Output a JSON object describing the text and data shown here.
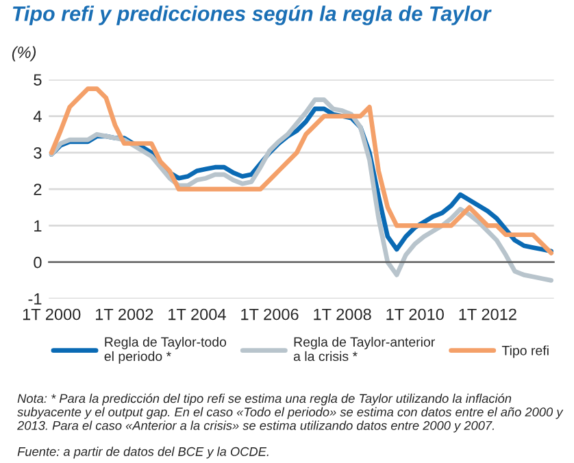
{
  "chart_data": {
    "type": "line",
    "title": "Tipo refi y predicciones según la regla de Taylor",
    "ylabel": "(%)",
    "categories": [
      "1T 2000",
      null,
      null,
      null,
      null,
      null,
      null,
      null,
      "1T 2002",
      null,
      null,
      null,
      null,
      null,
      null,
      null,
      "1T 2004",
      null,
      null,
      null,
      null,
      null,
      null,
      null,
      "1T 2006",
      null,
      null,
      null,
      null,
      null,
      null,
      null,
      "1T 2008",
      null,
      null,
      null,
      null,
      null,
      null,
      null,
      "1T 2010",
      null,
      null,
      null,
      null,
      null,
      null,
      null,
      "1T 2012",
      null,
      null,
      null,
      null,
      null,
      null,
      null
    ],
    "series": [
      {
        "name": "Regla de Taylor-todo\nel periodo *",
        "color": "#0a6ab4",
        "values": [
          2.95,
          3.2,
          3.3,
          3.3,
          3.3,
          3.45,
          3.45,
          3.4,
          3.4,
          3.25,
          3.15,
          3.0,
          2.7,
          2.45,
          2.3,
          2.35,
          2.5,
          2.55,
          2.6,
          2.6,
          2.45,
          2.35,
          2.4,
          2.7,
          3.0,
          3.25,
          3.45,
          3.6,
          3.85,
          4.2,
          4.2,
          4.05,
          4.0,
          3.95,
          3.7,
          3.0,
          1.8,
          0.7,
          0.35,
          0.7,
          0.95,
          1.1,
          1.25,
          1.35,
          1.55,
          1.85,
          1.7,
          1.55,
          1.4,
          1.2,
          0.9,
          0.6,
          0.45,
          0.4,
          0.35,
          0.3
        ]
      },
      {
        "name": "Regla de Taylor-anterior\na la crisis *",
        "color": "#b8c4cc",
        "values": [
          2.95,
          3.25,
          3.35,
          3.35,
          3.35,
          3.5,
          3.45,
          3.4,
          3.35,
          3.2,
          3.05,
          2.9,
          2.6,
          2.3,
          2.1,
          2.1,
          2.25,
          2.3,
          2.4,
          2.4,
          2.25,
          2.15,
          2.2,
          2.6,
          3.05,
          3.3,
          3.5,
          3.8,
          4.1,
          4.45,
          4.45,
          4.2,
          4.15,
          4.05,
          3.7,
          2.8,
          1.2,
          0.0,
          -0.35,
          0.2,
          0.5,
          0.7,
          0.85,
          1.0,
          1.2,
          1.45,
          1.3,
          1.1,
          0.85,
          0.6,
          0.2,
          -0.25,
          -0.35,
          -0.4,
          -0.45,
          -0.5
        ]
      },
      {
        "name": "Tipo refi",
        "color": "#f4a069",
        "values": [
          3.0,
          3.6,
          4.25,
          4.5,
          4.75,
          4.75,
          4.5,
          3.75,
          3.25,
          3.25,
          3.25,
          3.25,
          2.75,
          2.5,
          2.0,
          2.0,
          2.0,
          2.0,
          2.0,
          2.0,
          2.0,
          2.0,
          2.0,
          2.0,
          2.25,
          2.5,
          2.75,
          3.0,
          3.5,
          3.75,
          4.0,
          4.0,
          4.0,
          4.0,
          4.0,
          4.25,
          2.5,
          1.5,
          1.0,
          1.0,
          1.0,
          1.0,
          1.0,
          1.0,
          1.0,
          1.25,
          1.5,
          1.25,
          1.0,
          1.0,
          0.75,
          0.75,
          0.75,
          0.75,
          0.5,
          0.25
        ]
      }
    ],
    "ylim": [
      -1,
      5
    ],
    "yticks": [
      -1,
      0,
      1,
      2,
      3,
      4,
      5
    ],
    "grid": "y",
    "legend": "bottom",
    "marker": "none",
    "line_style": "solid",
    "annotations": [
      "Nota: * Para la predicción del tipo refi se estima una regla de Taylor utilizando la inflación subyacente y el output gap. En el caso «Todo el periodo» se estima con datos entre el año 2000 y 2013. Para el caso «Anterior a la crisis» se estima utilizando datos entre 2000 y 2007.",
      "Fuente: a partir de datos del BCE y la OCDE."
    ]
  }
}
